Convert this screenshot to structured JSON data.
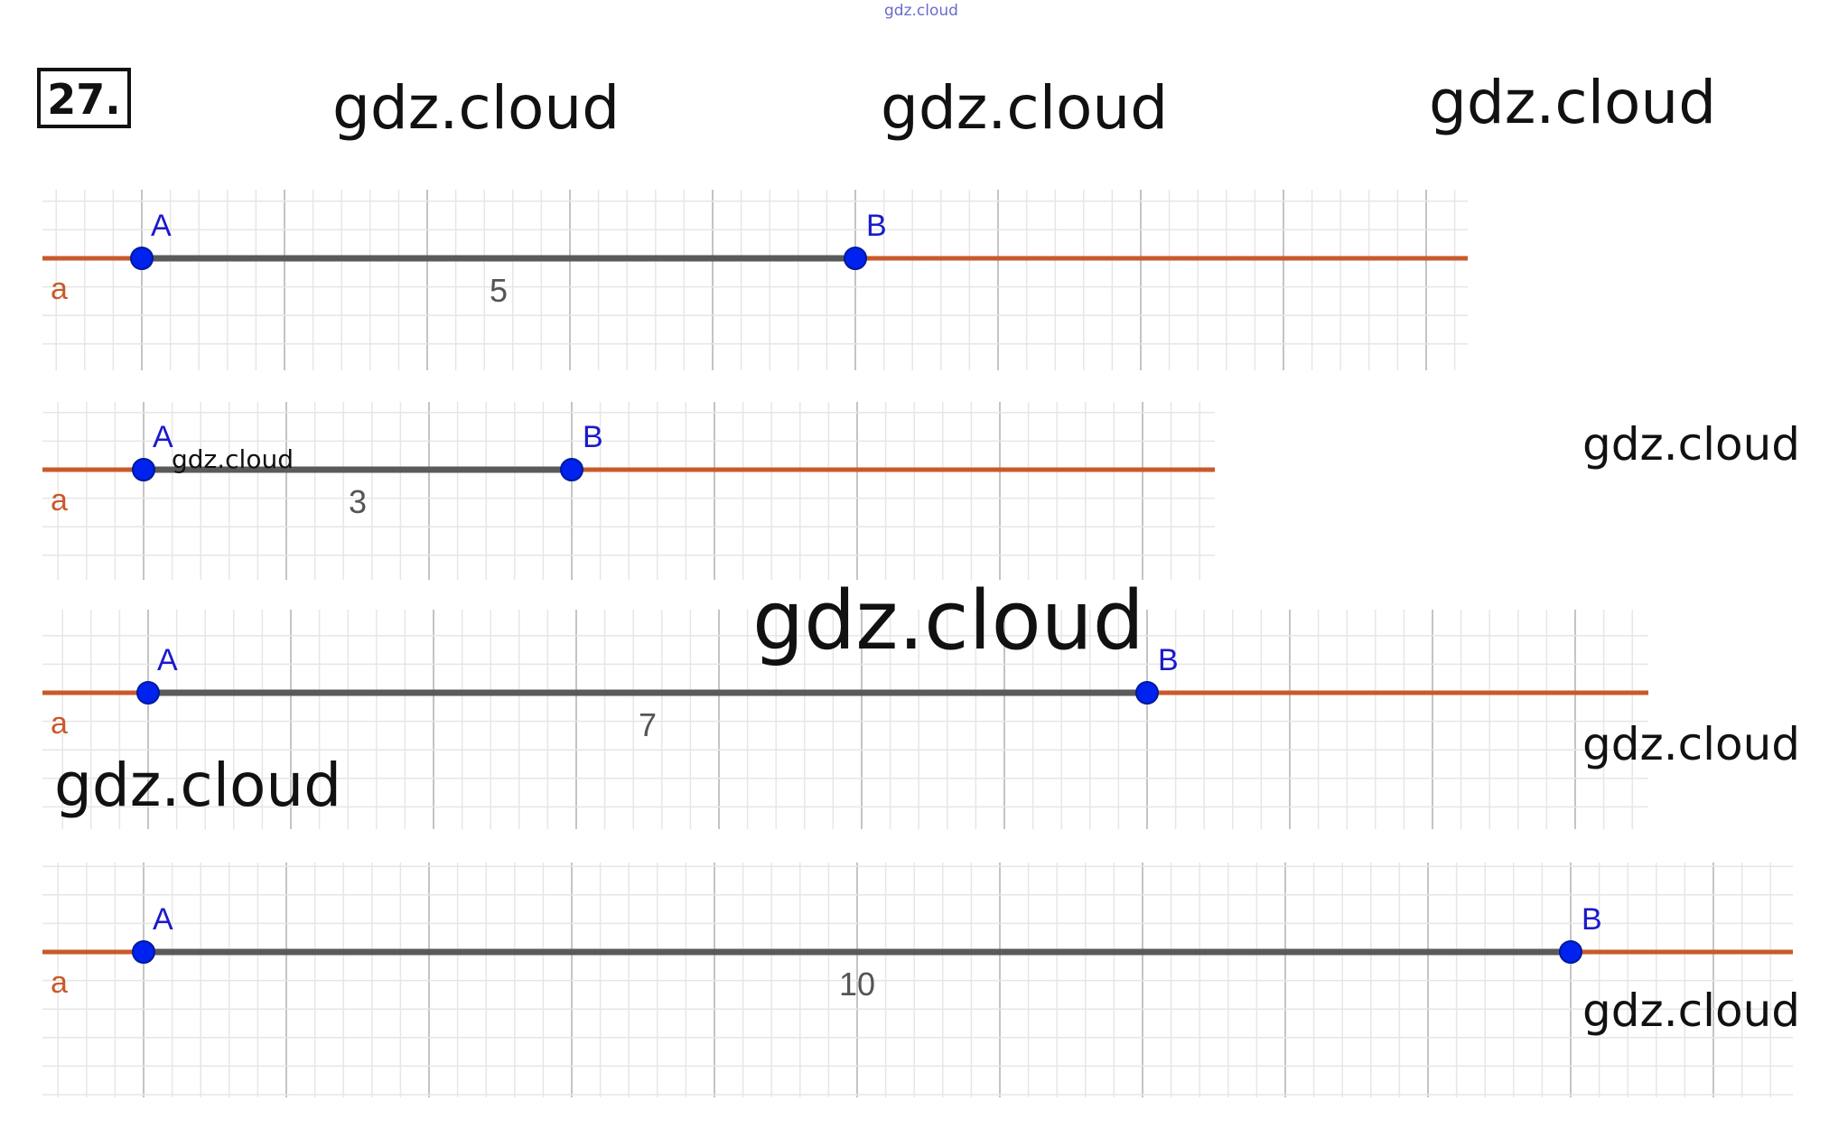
{
  "problem": {
    "number": "27."
  },
  "colors": {
    "grid_minor": "#e6e6e6",
    "grid_major": "#c4c4c4",
    "ray": "#c85a2a",
    "segment": "#5a5a5a",
    "point": "#0022ee",
    "point_label": "#1a1acc",
    "length_label": "#555555",
    "watermark": "#111111"
  },
  "top_source": "gdz.cloud",
  "watermarks": [
    "gdz.cloud",
    "gdz.cloud",
    "gdz.cloud",
    "gdz.cloud",
    "gdz.cloud",
    "gdz.cloud",
    "gdz.cloud",
    "gdz.cloud",
    "gdz.cloud"
  ],
  "diagrams": [
    {
      "line_label": "a",
      "point_a": "A",
      "point_b": "B",
      "length": 5,
      "length_label": "5"
    },
    {
      "line_label": "a",
      "point_a": "A",
      "point_b": "B",
      "length": 3,
      "length_label": "3"
    },
    {
      "line_label": "a",
      "point_a": "A",
      "point_b": "B",
      "length": 7,
      "length_label": "7"
    },
    {
      "line_label": "a",
      "point_a": "A",
      "point_b": "B",
      "length": 10,
      "length_label": "10"
    }
  ]
}
